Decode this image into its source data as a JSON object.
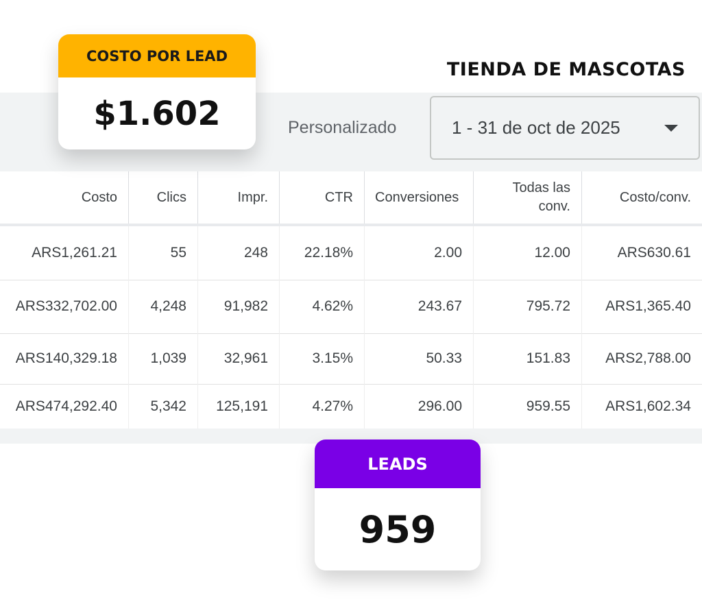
{
  "title": "TIENDA DE MASCOTAS",
  "date_filter": {
    "label": "Personalizado",
    "range": "1 - 31 de oct de 2025"
  },
  "badges": [
    {
      "label": "COSTO POR LEAD",
      "value": "$1.602"
    },
    {
      "label": "LEADS",
      "value": "959"
    }
  ],
  "table": {
    "headers": [
      "Costo",
      "Clics",
      "Impr.",
      "CTR",
      "Conversiones",
      "Todas las conv.",
      "Costo/conv."
    ],
    "rows": [
      [
        "ARS1,261.21",
        "55",
        "248",
        "22.18%",
        "2.00",
        "12.00",
        "ARS630.61"
      ],
      [
        "ARS332,702.00",
        "4,248",
        "91,982",
        "4.62%",
        "243.67",
        "795.72",
        "ARS1,365.40"
      ],
      [
        "ARS140,329.18",
        "1,039",
        "32,961",
        "3.15%",
        "50.33",
        "151.83",
        "ARS2,788.00"
      ],
      [
        "ARS474,292.40",
        "5,342",
        "125,191",
        "4.27%",
        "296.00",
        "959.55",
        "ARS1,602.34"
      ]
    ]
  }
}
